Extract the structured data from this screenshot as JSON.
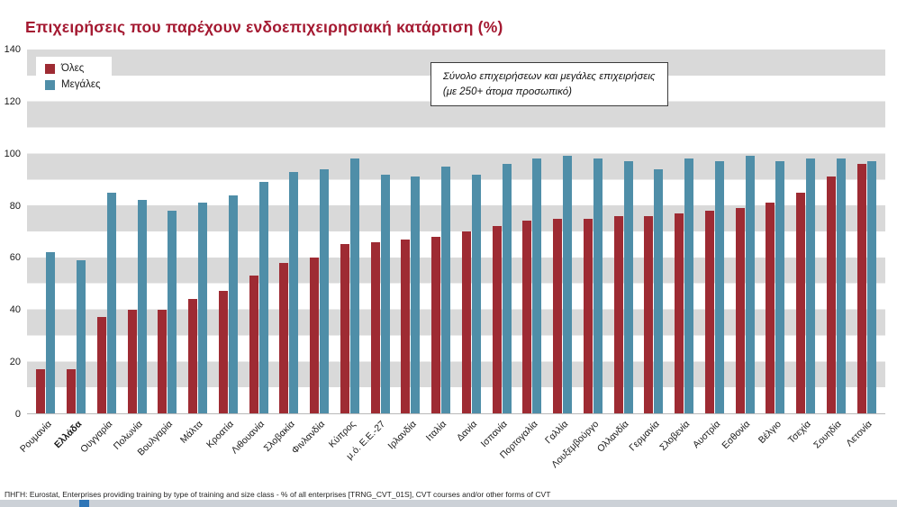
{
  "page": {
    "source_note": "ΠΗΓΗ: Eurostat, Enterprises providing training by type of training and size class - % of all enterprises [TRNG_CVT_01S], CVT courses and/or other forms of CVT"
  },
  "annotation": {
    "line1": "Σύνολο επιχειρήσεων και μεγάλες επιχειρήσεις",
    "line2": "(με 250+ άτομα προσωπικό)"
  },
  "colors": {
    "title": "#a41931",
    "series_all": "#9e2b33",
    "series_large": "#4f8ea8",
    "stripe_gray": "#d9d9d9",
    "stripe_white": "#ffffff"
  },
  "chart_data": {
    "type": "bar",
    "title": "Επιχειρήσεις που παρέχουν ενδοεπιχειρησιακή κατάρτιση (%)",
    "xlabel": "",
    "ylabel": "",
    "ylim": [
      0,
      140
    ],
    "yticks": [
      0,
      20,
      40,
      60,
      80,
      100,
      120,
      140
    ],
    "grid": "horizontal-bands",
    "legend_position": "top-left",
    "categories": [
      "Ρουμανία",
      "Ελλάδα",
      "Ουγγαρία",
      "Πολωνία",
      "Βουλγαρία",
      "Μάλτα",
      "Κροατία",
      "Λιθουανία",
      "Σλοβακία",
      "Φινλανδία",
      "Κύπρος",
      "μ.ό. Ε.Ε.-27",
      "Ιρλανδία",
      "Ιταλία",
      "Δανία",
      "Ισπανία",
      "Πορτογαλία",
      "Γαλλία",
      "Λουξεμβούργο",
      "Ολλανδία",
      "Γερμανία",
      "Σλοβενία",
      "Αυστρία",
      "Εσθονία",
      "Βέλγιο",
      "Τσεχία",
      "Σουηδία",
      "Λετονία"
    ],
    "bold_categories": [
      "Ελλάδα"
    ],
    "series": [
      {
        "name": "Όλες",
        "color": "#9e2b33",
        "values": [
          17,
          17,
          37,
          40,
          40,
          44,
          47,
          53,
          58,
          60,
          65,
          66,
          67,
          68,
          70,
          72,
          74,
          75,
          75,
          76,
          76,
          77,
          78,
          79,
          81,
          85,
          91,
          96
        ]
      },
      {
        "name": "Μεγάλες",
        "color": "#4f8ea8",
        "values": [
          62,
          59,
          85,
          82,
          78,
          81,
          84,
          89,
          93,
          94,
          98,
          92,
          91,
          95,
          92,
          96,
          98,
          99,
          98,
          97,
          94,
          98,
          97,
          99,
          97,
          98,
          98,
          97
        ]
      }
    ]
  }
}
